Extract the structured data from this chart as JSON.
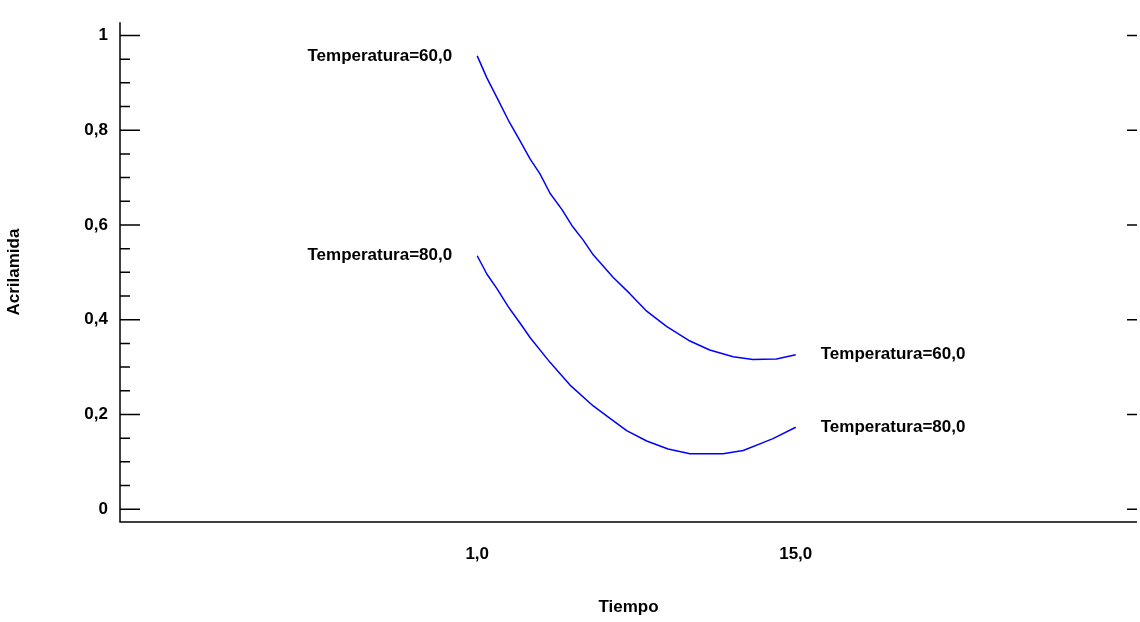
{
  "chart_data": {
    "type": "line",
    "xlabel": "Tiempo",
    "ylabel": "Acrilamida",
    "xlim": [
      -14.7,
      30
    ],
    "xticks": [
      {
        "value": 1,
        "label": "1,0"
      },
      {
        "value": 15,
        "label": "15,0"
      }
    ],
    "ylim": [
      -0.027,
      1.028
    ],
    "yticks": [
      0,
      {
        "value": 0.05,
        "label": null
      },
      {
        "value": 0.1,
        "label": null
      },
      {
        "value": 0.15,
        "label": null
      },
      {
        "value": 0.2,
        "label": "0,2"
      },
      {
        "value": 0.25,
        "label": null
      },
      {
        "value": 0.3,
        "label": null
      },
      {
        "value": 0.35,
        "label": null
      },
      {
        "value": 0.4,
        "label": "0,4"
      },
      {
        "value": 0.45,
        "label": null
      },
      {
        "value": 0.5,
        "label": null
      },
      {
        "value": 0.55,
        "label": null
      },
      {
        "value": 0.6,
        "label": "0,6"
      },
      {
        "value": 0.65,
        "label": null
      },
      {
        "value": 0.7,
        "label": null
      },
      {
        "value": 0.75,
        "label": null
      },
      {
        "value": 0.8,
        "label": "0,8"
      },
      {
        "value": 0.85,
        "label": null
      },
      {
        "value": 0.9,
        "label": null
      },
      {
        "value": 0.95,
        "label": null
      },
      1
    ],
    "grid": false,
    "legend": false,
    "marker": "none",
    "line_style": "solid",
    "series": [
      {
        "name": "Temperatura=60,0",
        "color": "#0000ff",
        "x": [
          1,
          1.43,
          1.93,
          2.37,
          2.81,
          3.33,
          3.76,
          4.2,
          4.72,
          5.16,
          5.66,
          6.1,
          6.98,
          7.71,
          8.45,
          9.32,
          10.35,
          11.22,
          12.25,
          13.12,
          14.15,
          15
        ],
        "values": [
          0.957,
          0.91,
          0.863,
          0.821,
          0.784,
          0.739,
          0.708,
          0.667,
          0.633,
          0.599,
          0.568,
          0.537,
          0.489,
          0.455,
          0.418,
          0.386,
          0.355,
          0.336,
          0.322,
          0.316,
          0.317,
          0.326
        ]
      },
      {
        "name": "Temperatura=80,0",
        "color": "#0000ff",
        "x": [
          1,
          1.43,
          1.86,
          2.37,
          2.88,
          3.33,
          4.2,
          5.08,
          6.1,
          6.69,
          7.57,
          8.45,
          9.39,
          10.35,
          11.81,
          12.69,
          14,
          15
        ],
        "values": [
          0.535,
          0.496,
          0.466,
          0.427,
          0.393,
          0.362,
          0.31,
          0.262,
          0.218,
          0.197,
          0.166,
          0.144,
          0.127,
          0.117,
          0.117,
          0.124,
          0.149,
          0.173
        ]
      }
    ]
  }
}
